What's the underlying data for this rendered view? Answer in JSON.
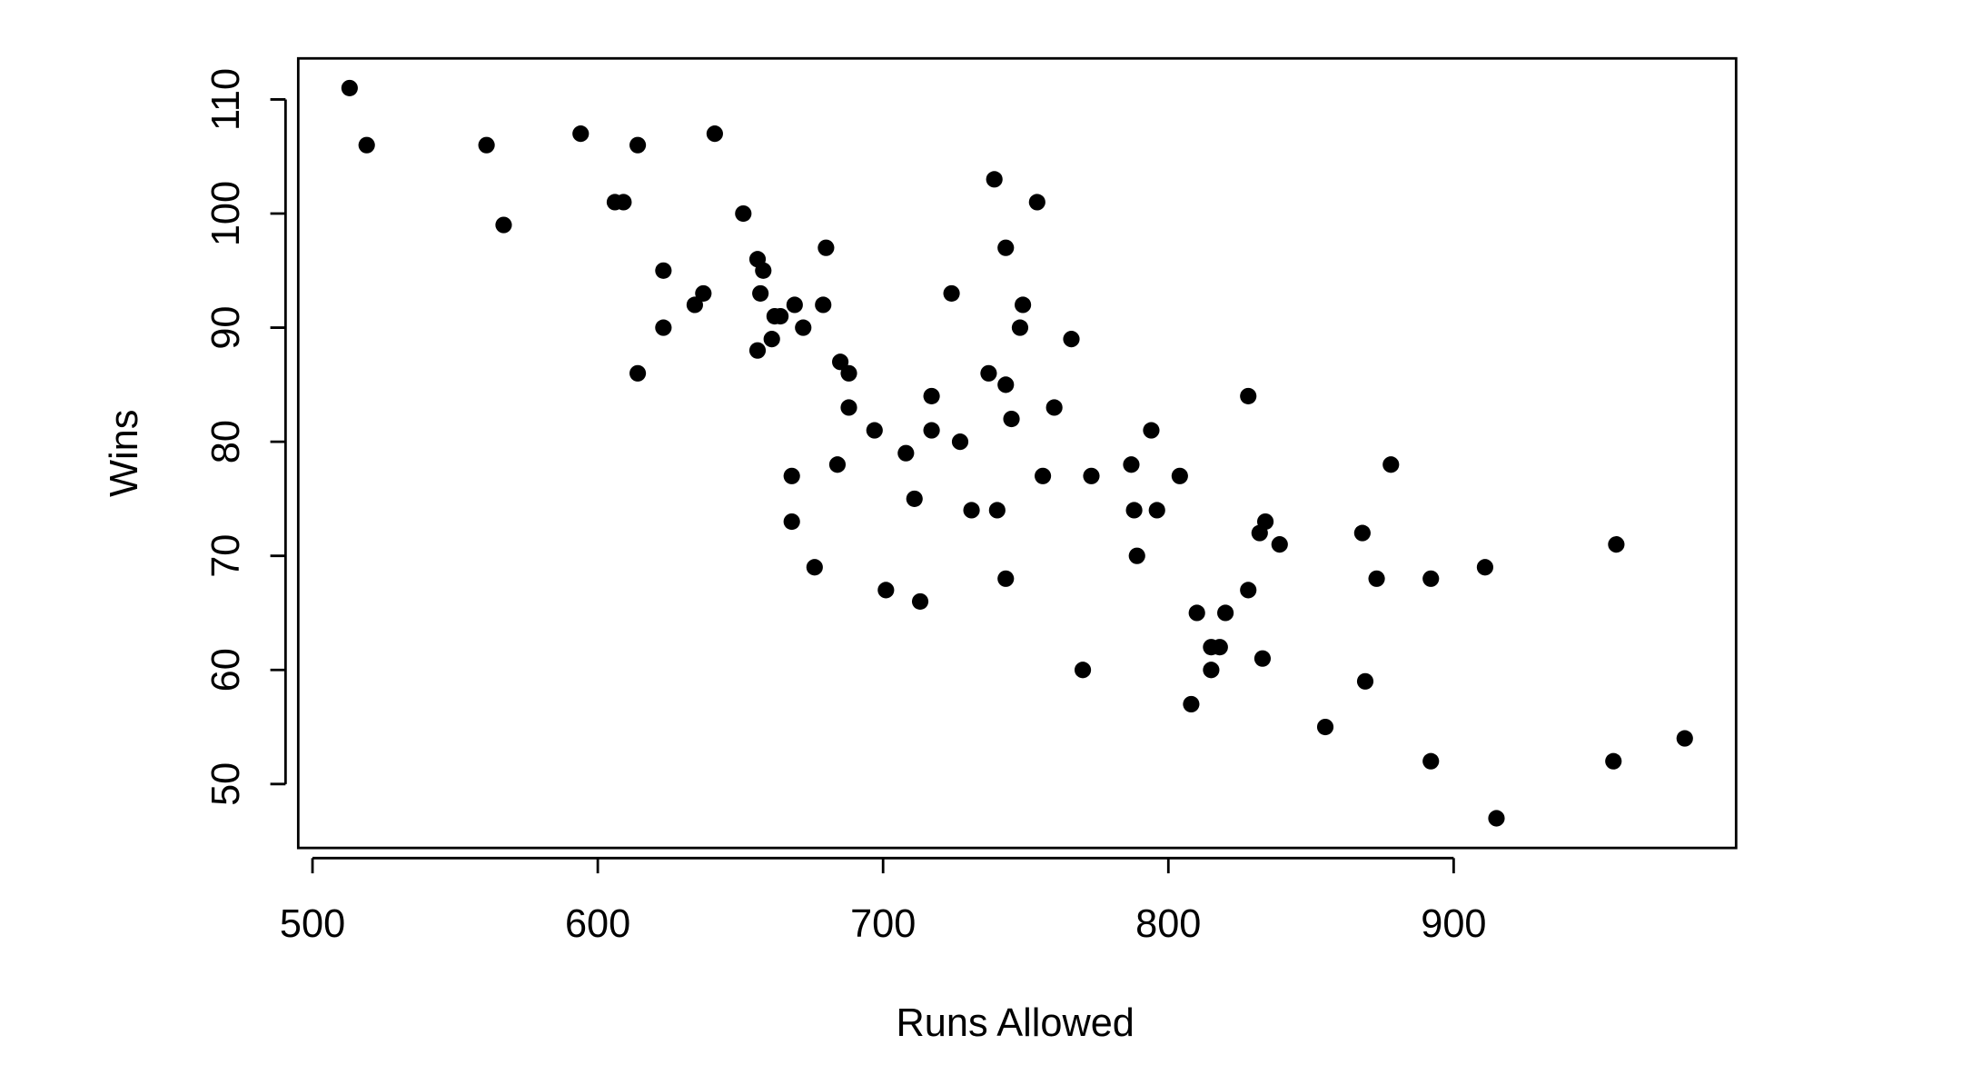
{
  "chart_data": {
    "type": "scatter",
    "x_label": "Runs Allowed",
    "y_label": "Wins",
    "color": "#000000",
    "x": [
      513,
      519,
      561,
      567,
      594,
      606,
      609,
      614,
      614,
      623,
      623,
      634,
      637,
      641,
      651,
      656,
      658,
      657,
      656,
      661,
      662,
      664,
      669,
      672,
      679,
      680,
      668,
      668,
      676,
      684,
      685,
      688,
      688,
      697,
      701,
      708,
      711,
      713,
      717,
      717,
      724,
      727,
      731,
      737,
      739,
      740,
      743,
      743,
      743,
      745,
      748,
      749,
      754,
      756,
      760,
      766,
      770,
      773,
      787,
      788,
      789,
      794,
      796,
      804,
      808,
      810,
      815,
      815,
      818,
      820,
      828,
      828,
      832,
      834,
      833,
      839,
      855,
      868,
      869,
      873,
      878,
      892,
      892,
      911,
      915,
      956,
      957,
      981
    ],
    "y": [
      111,
      106,
      106,
      99,
      107,
      101,
      101,
      106,
      86,
      95,
      90,
      92,
      93,
      107,
      100,
      96,
      95,
      93,
      88,
      89,
      91,
      91,
      92,
      90,
      92,
      97,
      77,
      73,
      69,
      78,
      87,
      86,
      83,
      81,
      67,
      79,
      75,
      66,
      84,
      81,
      93,
      80,
      74,
      86,
      103,
      74,
      97,
      85,
      68,
      82,
      90,
      92,
      101,
      77,
      83,
      89,
      60,
      77,
      78,
      74,
      70,
      81,
      74,
      77,
      57,
      65,
      60,
      62,
      62,
      65,
      84,
      67,
      72,
      73,
      61,
      71,
      55,
      72,
      59,
      68,
      78,
      52,
      68,
      69,
      47,
      52,
      71,
      54
    ],
    "xlim": [
      495,
      999
    ],
    "ylim": [
      44.4,
      113.6
    ],
    "xticks": [
      500,
      600,
      700,
      800,
      900
    ],
    "yticks": [
      50,
      60,
      70,
      80,
      90,
      100,
      110
    ]
  }
}
